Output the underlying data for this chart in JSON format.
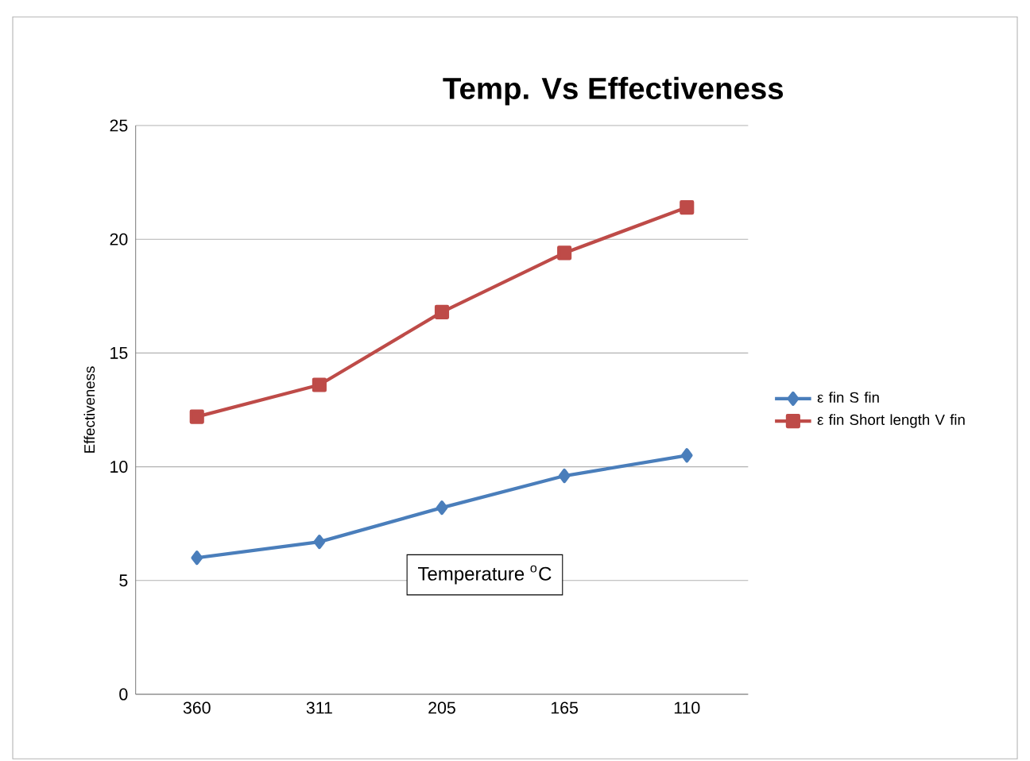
{
  "chart_data": {
    "type": "line",
    "title": "Temp. Vs Effectiveness",
    "xlabel": "Temperature $^{o}$C",
    "ylabel": "Effectiveness",
    "categories": [
      "360",
      "311",
      "205",
      "165",
      "110"
    ],
    "series": [
      {
        "name": "ε fin S fin",
        "color": "#4a7ebb",
        "marker": "diamond",
        "values": [
          6.0,
          6.7,
          8.2,
          9.6,
          10.5
        ]
      },
      {
        "name": "ε fin Short length V fin",
        "color": "#be4b48",
        "marker": "square",
        "values": [
          12.2,
          13.6,
          16.8,
          19.4,
          21.4
        ]
      }
    ],
    "ylim": [
      0,
      25
    ],
    "yticks": [
      0,
      5,
      10,
      15,
      20,
      25
    ],
    "grid": "y",
    "legend": "right",
    "line_style": "solid"
  }
}
